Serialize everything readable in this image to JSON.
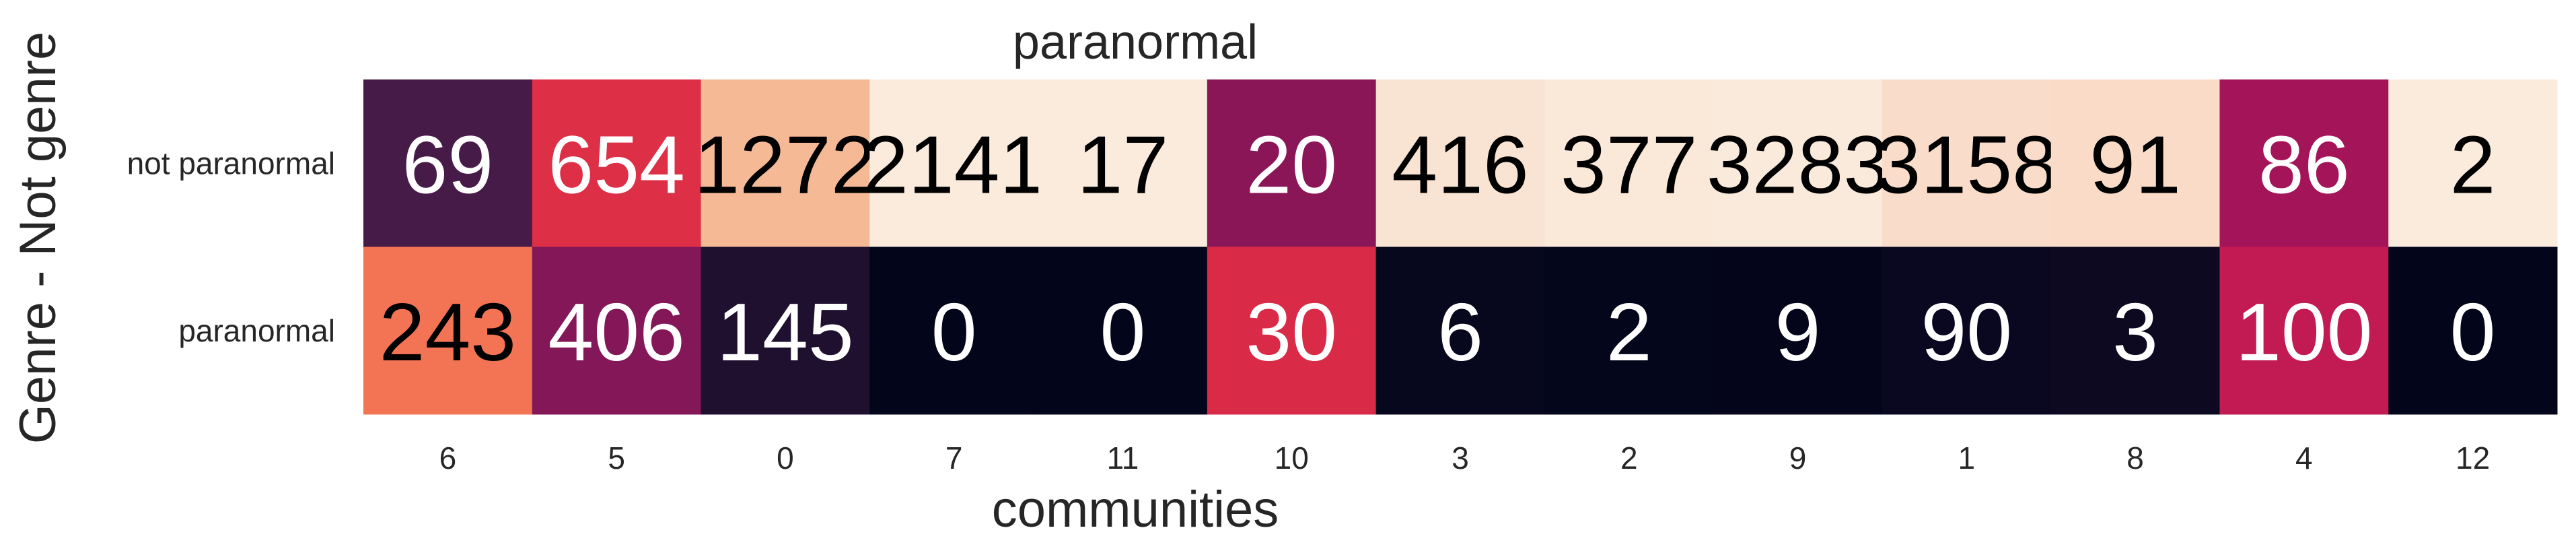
{
  "chart_data": {
    "type": "heatmap",
    "title": "paranormal",
    "xlabel": "communities",
    "ylabel": "Genre - Not genre",
    "x_categories": [
      "6",
      "5",
      "0",
      "7",
      "11",
      "10",
      "3",
      "2",
      "9",
      "1",
      "8",
      "4",
      "12"
    ],
    "y_categories": [
      "not paranormal",
      "paranormal"
    ],
    "values": [
      [
        69,
        654,
        1272,
        2141,
        17,
        20,
        416,
        377,
        3283,
        3158,
        91,
        86,
        2
      ],
      [
        243,
        406,
        145,
        0,
        0,
        30,
        6,
        2,
        9,
        90,
        3,
        100,
        0
      ]
    ],
    "normalization": "per-column fraction",
    "colormap": "rocket",
    "colorbar": false,
    "grid": false
  }
}
